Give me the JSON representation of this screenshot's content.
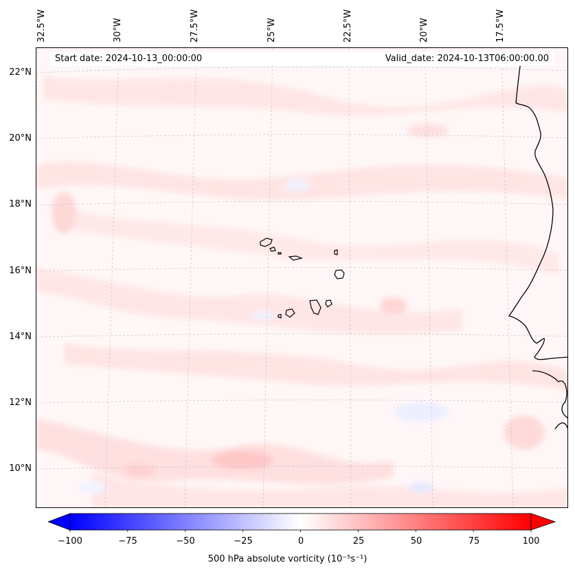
{
  "info": {
    "start_date": "Start date: 2024-10-13_00:00:00",
    "valid_date": "Valid_date: 2024-10-13T06:00:00.00"
  },
  "map": {
    "variable": "500 hPa absolute vorticity",
    "longitude_labels": [
      "32.5°W",
      "30°W",
      "27.5°W",
      "25°W",
      "22.5°W",
      "20°W",
      "17.5°W"
    ],
    "latitude_labels": [
      "22°N",
      "20°N",
      "18°N",
      "16°N",
      "14°N",
      "12°N",
      "10°N"
    ],
    "gridlines": true,
    "coastline_color": "#000000",
    "features": [
      "west-africa-coastline",
      "cape-verde-islands"
    ]
  },
  "colorbar": {
    "label": "500 hPa absolute vorticity (10⁻⁵s⁻¹)",
    "ticks": [
      "−100",
      "−75",
      "−50",
      "−25",
      "0",
      "25",
      "50",
      "75",
      "100"
    ],
    "min": -100,
    "max": 100,
    "colormap": "bwr",
    "extend": "both",
    "min_color": "#0000ff",
    "mid_color": "#ffffff",
    "max_color": "#ff0000"
  }
}
